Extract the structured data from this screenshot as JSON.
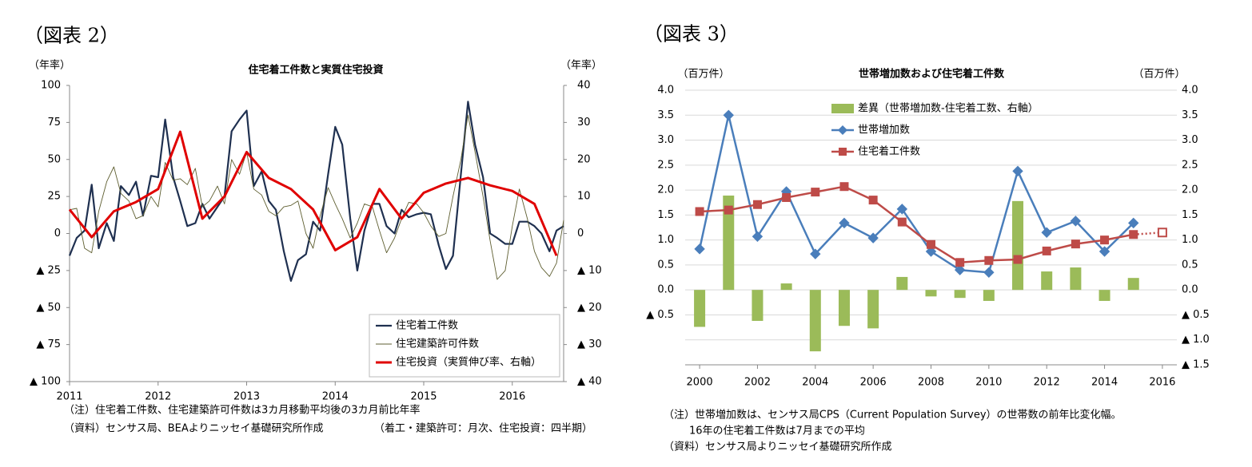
{
  "chart_data": [
    {
      "type": "line",
      "figure_label": "（図表 2）",
      "title": "住宅着工件数と実質住宅投資",
      "y_label": "（年率）",
      "y2_label": "（年率）",
      "x": [
        2011,
        2011.08,
        2011.17,
        2011.25,
        2011.33,
        2011.42,
        2011.5,
        2011.58,
        2011.67,
        2011.75,
        2011.83,
        2011.92,
        2012,
        2012.08,
        2012.17,
        2012.25,
        2012.33,
        2012.42,
        2012.5,
        2012.58,
        2012.67,
        2012.75,
        2012.83,
        2012.92,
        2013,
        2013.08,
        2013.17,
        2013.25,
        2013.33,
        2013.42,
        2013.5,
        2013.58,
        2013.67,
        2013.75,
        2013.83,
        2013.92,
        2014,
        2014.08,
        2014.17,
        2014.25,
        2014.33,
        2014.42,
        2014.5,
        2014.58,
        2014.67,
        2014.75,
        2014.83,
        2014.92,
        2015,
        2015.08,
        2015.17,
        2015.25,
        2015.33,
        2015.42,
        2015.5,
        2015.58,
        2015.67,
        2015.75,
        2015.83,
        2015.92,
        2016,
        2016.08,
        2016.17,
        2016.25,
        2016.33,
        2016.42,
        2016.5,
        2016.58
      ],
      "xlim": [
        2011,
        2016.58
      ],
      "xticks": [
        2011,
        2012,
        2013,
        2014,
        2015,
        2016
      ],
      "ylim": [
        -100,
        100
      ],
      "yticks": [
        100,
        75,
        50,
        25,
        0,
        {
          "value": -25,
          "label": "▲ 25"
        },
        {
          "value": -50,
          "label": "▲ 50"
        },
        {
          "value": -75,
          "label": "▲ 75"
        },
        {
          "value": -100,
          "label": "▲ 100"
        }
      ],
      "y2lim": [
        -40,
        40
      ],
      "y2ticks": [
        40,
        30,
        20,
        10,
        0,
        {
          "value": -10,
          "label": "▲ 10"
        },
        {
          "value": -20,
          "label": "▲ 20"
        },
        {
          "value": -30,
          "label": "▲ 30"
        },
        {
          "value": -40,
          "label": "▲ 40"
        }
      ],
      "grid": false,
      "legend": "lower right",
      "series": [
        {
          "name": "住宅着工件数",
          "color": "#1f3050",
          "width": 2.2,
          "values": [
            -15,
            -3,
            2,
            33,
            -10,
            7,
            -5,
            32,
            26,
            35,
            12,
            39,
            38,
            77,
            38,
            22,
            5,
            7,
            20,
            10,
            18,
            25,
            69,
            77,
            83,
            32,
            42,
            22,
            16,
            -12,
            -32,
            -18,
            -14,
            8,
            2,
            40,
            72,
            60,
            10,
            -25,
            2,
            20,
            20,
            5,
            0,
            16,
            11,
            13,
            14,
            13,
            -8,
            -24,
            -15,
            40,
            89,
            60,
            38,
            0,
            -3,
            -7,
            -7,
            8,
            8,
            5,
            0,
            -12,
            2,
            5
          ]
        },
        {
          "name": "住宅建築許可件数",
          "color": "#5e5e30",
          "width": 0.9,
          "values": [
            16,
            17,
            -10,
            -13,
            15,
            35,
            45,
            27,
            22,
            10,
            12,
            25,
            18,
            48,
            36,
            37,
            33,
            44,
            18,
            22,
            32,
            20,
            50,
            40,
            55,
            30,
            26,
            15,
            12,
            18,
            19,
            22,
            0,
            -10,
            12,
            31,
            20,
            10,
            -3,
            7,
            20,
            18,
            2,
            -13,
            -3,
            10,
            21,
            20,
            14,
            5,
            -2,
            0,
            25,
            50,
            80,
            55,
            25,
            -5,
            -31,
            -25,
            5,
            30,
            10,
            -12,
            -23,
            -29,
            -20,
            9
          ]
        },
        {
          "name": "住宅投資（実質伸び率、右軸）",
          "color": "#e00000",
          "width": 3,
          "axis": "y2",
          "x": [
            2011,
            2011.25,
            2011.5,
            2011.75,
            2012,
            2012.25,
            2012.5,
            2012.75,
            2013,
            2013.25,
            2013.5,
            2013.75,
            2014,
            2014.25,
            2014.5,
            2014.75,
            2015,
            2015.25,
            2015.5,
            2015.75,
            2016,
            2016.25,
            2016.5
          ],
          "values": [
            6.5,
            -1,
            6,
            8.5,
            12,
            27.5,
            4,
            10,
            22,
            15,
            12,
            6.5,
            -4.5,
            -1,
            12,
            4,
            11,
            13.5,
            15,
            13,
            11.5,
            8,
            -6
          ]
        }
      ],
      "notes": [
        "（注）住宅着工件数、住宅建築許可件数は3カ月移動平均後の3カ月前比年率",
        "（資料）センサス局、BEAよりニッセイ基礎研究所作成",
        "（着工・建築許可：月次、住宅投資：四半期）"
      ]
    },
    {
      "type": "combo",
      "figure_label": "（図表 3）",
      "title": "世帯増加数および住宅着工件数",
      "y_label": "（百万件）",
      "y2_label": "（百万件）",
      "x": [
        2000,
        2001,
        2002,
        2003,
        2004,
        2005,
        2006,
        2007,
        2008,
        2009,
        2010,
        2011,
        2012,
        2013,
        2014,
        2015,
        2016
      ],
      "xlim": [
        1999.5,
        2016.5
      ],
      "xticks": [
        2000,
        2002,
        2004,
        2006,
        2008,
        2010,
        2012,
        2014,
        2016
      ],
      "ylim": [
        -1.5,
        4
      ],
      "yticks": [
        {
          "value": 4,
          "label": "4.0"
        },
        {
          "value": 3.5,
          "label": "3.5"
        },
        {
          "value": 3,
          "label": "3.0"
        },
        {
          "value": 2.5,
          "label": "2.5"
        },
        {
          "value": 2,
          "label": "2.0"
        },
        {
          "value": 1.5,
          "label": "1.5"
        },
        {
          "value": 1,
          "label": "1.0"
        },
        {
          "value": 0.5,
          "label": "0.5"
        },
        {
          "value": 0,
          "label": "0.0"
        },
        {
          "value": -0.5,
          "label": "▲ 0.5"
        }
      ],
      "y2lim": [
        -1.5,
        4
      ],
      "y2ticks": [
        {
          "value": 4,
          "label": "4.0"
        },
        {
          "value": 3.5,
          "label": "3.5"
        },
        {
          "value": 3,
          "label": "3.0"
        },
        {
          "value": 2.5,
          "label": "2.5"
        },
        {
          "value": 2,
          "label": "2.0"
        },
        {
          "value": 1.5,
          "label": "1.5"
        },
        {
          "value": 1,
          "label": "1.0"
        },
        {
          "value": 0.5,
          "label": "0.5"
        },
        {
          "value": 0,
          "label": "0.0"
        },
        {
          "value": -0.5,
          "label": "▲ 0.5"
        },
        {
          "value": -1,
          "label": "▲ 1.0"
        },
        {
          "value": -1.5,
          "label": "▲ 1.5"
        }
      ],
      "grid": true,
      "legend": "upper left",
      "series": [
        {
          "name": "差異（世帯増加数-住宅着工数、右軸）",
          "type": "bar",
          "axis": "y2",
          "color": "#9bbb59",
          "values": [
            -0.74,
            1.89,
            -0.62,
            0.13,
            -1.23,
            -0.72,
            -0.77,
            0.26,
            -0.13,
            -0.16,
            -0.22,
            1.78,
            0.37,
            0.45,
            -0.22,
            0.24,
            null
          ]
        },
        {
          "name": "世帯増加数",
          "type": "line",
          "marker": "diamond",
          "color": "#4a7ebb",
          "width": 2.5,
          "values": [
            0.82,
            3.5,
            1.07,
            1.97,
            0.72,
            1.34,
            1.04,
            1.62,
            0.77,
            0.4,
            0.35,
            2.38,
            1.15,
            1.38,
            0.77,
            1.34,
            null
          ]
        },
        {
          "name": "住宅着工件数",
          "type": "line",
          "marker": "square",
          "color": "#be4b48",
          "width": 2.5,
          "dotted_last": true,
          "values": [
            1.57,
            1.6,
            1.71,
            1.85,
            1.96,
            2.07,
            1.8,
            1.36,
            0.91,
            0.55,
            0.59,
            0.61,
            0.78,
            0.92,
            1.0,
            1.11,
            1.15
          ]
        }
      ],
      "notes": [
        "（注）世帯増加数は、センサス局CPS（Current Population Survey）の世帯数の前年比変化幅。",
        "16年の住宅着工件数は7月までの平均",
        "（資料）センサス局よりニッセイ基礎研究所作成"
      ]
    }
  ]
}
